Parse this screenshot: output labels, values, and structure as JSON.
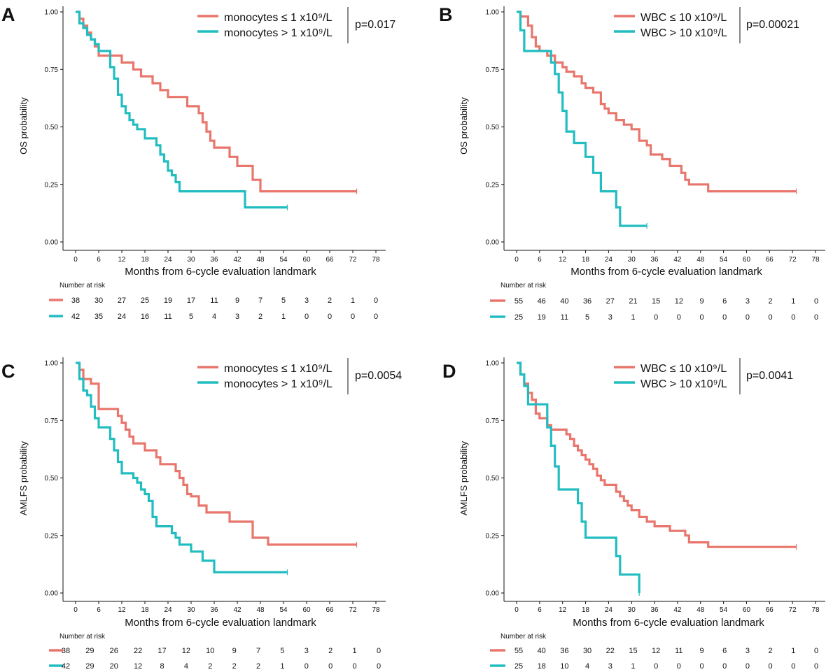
{
  "chart_data": [
    {
      "panel": "A",
      "type": "line",
      "title": "",
      "xlabel": "Months from 6-cycle evaluation landmark",
      "ylabel": "OS probability",
      "xlim": [
        0,
        78
      ],
      "ylim": [
        0,
        1
      ],
      "x_ticks": [
        "0",
        "6",
        "12",
        "18",
        "24",
        "30",
        "36",
        "42",
        "48",
        "54",
        "60",
        "66",
        "72",
        "78"
      ],
      "y_ticks": [
        "0.00",
        "0.25",
        "0.50",
        "0.75",
        "1.00"
      ],
      "p_value": "p=0.017",
      "risk_title": "Number at risk",
      "risk_times": [
        0,
        6,
        12,
        18,
        24,
        30,
        36,
        42,
        48,
        54,
        60,
        66,
        72,
        78
      ],
      "series": [
        {
          "name": "monocytes ≤ 1 x10⁹/L",
          "color": "#e8766c",
          "x": [
            0,
            1,
            2,
            3,
            4,
            5,
            6,
            9,
            12,
            14,
            15,
            16,
            17,
            18,
            20,
            21,
            22,
            23,
            24,
            26,
            28,
            29,
            30,
            32,
            33,
            34,
            35,
            36,
            38,
            40,
            42,
            45,
            46,
            48,
            50,
            54,
            58,
            60,
            66,
            72,
            73
          ],
          "y": [
            1,
            0.97,
            0.94,
            0.91,
            0.88,
            0.85,
            0.81,
            0.81,
            0.78,
            0.78,
            0.75,
            0.75,
            0.72,
            0.72,
            0.69,
            0.69,
            0.66,
            0.66,
            0.63,
            0.63,
            0.63,
            0.59,
            0.59,
            0.56,
            0.52,
            0.48,
            0.44,
            0.41,
            0.41,
            0.37,
            0.33,
            0.33,
            0.27,
            0.22,
            0.22,
            0.22,
            0.22,
            0.22,
            0.22,
            0.22,
            0.22
          ],
          "risk": [
            "38",
            "30",
            "27",
            "25",
            "19",
            "17",
            "11",
            "9",
            "7",
            "5",
            "3",
            "2",
            "1",
            "0"
          ]
        },
        {
          "name": "monocytes > 1 x10⁹/L",
          "color": "#22bdc1",
          "x": [
            0,
            1,
            2,
            3,
            4,
            5,
            6,
            7,
            8,
            9,
            10,
            11,
            12,
            13,
            14,
            15,
            16,
            17,
            18,
            20,
            21,
            22,
            23,
            24,
            25,
            26,
            27,
            28,
            30,
            33,
            44,
            48,
            55
          ],
          "y": [
            1,
            0.95,
            0.93,
            0.9,
            0.88,
            0.86,
            0.83,
            0.83,
            0.83,
            0.76,
            0.71,
            0.64,
            0.59,
            0.56,
            0.53,
            0.51,
            0.49,
            0.49,
            0.45,
            0.45,
            0.42,
            0.38,
            0.35,
            0.31,
            0.29,
            0.26,
            0.22,
            0.22,
            0.22,
            0.22,
            0.15,
            0.15,
            0.15
          ],
          "risk": [
            "42",
            "35",
            "24",
            "16",
            "11",
            "5",
            "4",
            "3",
            "2",
            "1",
            "0",
            "0",
            "0",
            "0"
          ]
        }
      ]
    },
    {
      "panel": "B",
      "type": "line",
      "title": "",
      "xlabel": "Months from 6-cycle evaluation landmark",
      "ylabel": "OS probability",
      "xlim": [
        0,
        78
      ],
      "ylim": [
        0,
        1
      ],
      "x_ticks": [
        "0",
        "6",
        "12",
        "18",
        "24",
        "30",
        "36",
        "42",
        "48",
        "54",
        "60",
        "66",
        "72",
        "78"
      ],
      "y_ticks": [
        "0.00",
        "0.25",
        "0.50",
        "0.75",
        "1.00"
      ],
      "p_value": "p=0.00021",
      "risk_title": "Number at risk",
      "risk_times": [
        0,
        6,
        12,
        18,
        24,
        30,
        36,
        42,
        48,
        54,
        60,
        66,
        72,
        78
      ],
      "series": [
        {
          "name": "WBC ≤ 10 x10⁹/L",
          "color": "#e8766c",
          "x": [
            0,
            1,
            3,
            4,
            5,
            6,
            8,
            10,
            12,
            13,
            15,
            17,
            18,
            20,
            22,
            23,
            24,
            26,
            28,
            30,
            32,
            34,
            35,
            37,
            38,
            40,
            42,
            43,
            44,
            45,
            47,
            50,
            54,
            60,
            66,
            72,
            73
          ],
          "y": [
            1,
            0.98,
            0.94,
            0.89,
            0.85,
            0.83,
            0.81,
            0.78,
            0.76,
            0.74,
            0.72,
            0.69,
            0.67,
            0.65,
            0.6,
            0.58,
            0.56,
            0.53,
            0.51,
            0.49,
            0.44,
            0.42,
            0.38,
            0.38,
            0.36,
            0.33,
            0.33,
            0.3,
            0.27,
            0.25,
            0.25,
            0.22,
            0.22,
            0.22,
            0.22,
            0.22,
            0.22
          ],
          "risk": [
            "55",
            "46",
            "40",
            "36",
            "27",
            "21",
            "15",
            "12",
            "9",
            "6",
            "3",
            "2",
            "1",
            "0"
          ]
        },
        {
          "name": "WBC > 10 x10⁹/L",
          "color": "#22bdc1",
          "x": [
            0,
            1,
            2,
            8,
            9,
            10,
            11,
            12,
            13,
            14,
            15,
            16,
            17,
            18,
            19,
            20,
            22,
            25,
            26,
            27,
            28,
            30,
            34
          ],
          "y": [
            1,
            0.92,
            0.83,
            0.83,
            0.78,
            0.73,
            0.65,
            0.57,
            0.48,
            0.48,
            0.43,
            0.43,
            0.43,
            0.37,
            0.37,
            0.3,
            0.22,
            0.22,
            0.15,
            0.07,
            0.07,
            0.07,
            0.07
          ],
          "risk": [
            "25",
            "19",
            "11",
            "5",
            "3",
            "1",
            "0",
            "0",
            "0",
            "0",
            "0",
            "0",
            "0",
            "0"
          ]
        }
      ]
    },
    {
      "panel": "C",
      "type": "line",
      "title": "",
      "xlabel": "Months from 6-cycle evaluation landmark",
      "ylabel": "AMLFS probability",
      "xlim": [
        0,
        78
      ],
      "ylim": [
        0,
        1
      ],
      "x_ticks": [
        "0",
        "6",
        "12",
        "18",
        "24",
        "30",
        "36",
        "42",
        "48",
        "54",
        "60",
        "66",
        "72",
        "78"
      ],
      "y_ticks": [
        "0.00",
        "0.25",
        "0.50",
        "0.75",
        "1.00"
      ],
      "p_value": "p=0.0054",
      "risk_title": "Number at risk",
      "risk_times": [
        0,
        6,
        12,
        18,
        24,
        30,
        36,
        42,
        48,
        54,
        60,
        66,
        72,
        78
      ],
      "series": [
        {
          "name": "monocytes ≤ 1 x10⁹/L",
          "color": "#e8766c",
          "x": [
            0,
            1,
            2,
            4,
            6,
            9,
            11,
            12,
            13,
            14,
            15,
            16,
            18,
            20,
            21,
            22,
            24,
            26,
            27,
            28,
            29,
            30,
            32,
            34,
            36,
            40,
            44,
            46,
            48,
            50,
            54,
            60,
            66,
            72,
            73
          ],
          "y": [
            1,
            0.97,
            0.93,
            0.91,
            0.8,
            0.8,
            0.77,
            0.74,
            0.71,
            0.68,
            0.65,
            0.65,
            0.62,
            0.62,
            0.59,
            0.56,
            0.56,
            0.53,
            0.5,
            0.47,
            0.43,
            0.42,
            0.38,
            0.35,
            0.35,
            0.31,
            0.31,
            0.24,
            0.24,
            0.21,
            0.21,
            0.21,
            0.21,
            0.21,
            0.21
          ],
          "risk": [
            "38",
            "29",
            "26",
            "22",
            "17",
            "12",
            "10",
            "9",
            "7",
            "5",
            "3",
            "2",
            "1",
            "0"
          ]
        },
        {
          "name": "monocytes > 1 x10⁹/L",
          "color": "#22bdc1",
          "x": [
            0,
            1,
            2,
            3,
            4,
            5,
            6,
            8,
            9,
            10,
            11,
            12,
            14,
            15,
            16,
            17,
            18,
            19,
            20,
            21,
            24,
            25,
            26,
            27,
            30,
            32,
            33,
            36,
            44,
            55
          ],
          "y": [
            1,
            0.93,
            0.88,
            0.86,
            0.81,
            0.76,
            0.72,
            0.72,
            0.67,
            0.62,
            0.57,
            0.52,
            0.52,
            0.5,
            0.48,
            0.45,
            0.43,
            0.4,
            0.33,
            0.29,
            0.29,
            0.26,
            0.24,
            0.21,
            0.18,
            0.18,
            0.14,
            0.09,
            0.09,
            0.09
          ],
          "risk": [
            "42",
            "29",
            "20",
            "12",
            "8",
            "4",
            "2",
            "2",
            "2",
            "1",
            "0",
            "0",
            "0",
            "0"
          ]
        }
      ]
    },
    {
      "panel": "D",
      "type": "line",
      "title": "",
      "xlabel": "Months from 6-cycle evaluation landmark",
      "ylabel": "AMLFS probability",
      "xlim": [
        0,
        78
      ],
      "ylim": [
        0,
        1
      ],
      "x_ticks": [
        "0",
        "6",
        "12",
        "18",
        "24",
        "30",
        "36",
        "42",
        "48",
        "54",
        "60",
        "66",
        "72",
        "78"
      ],
      "y_ticks": [
        "0.00",
        "0.25",
        "0.50",
        "0.75",
        "1.00"
      ],
      "p_value": "p=0.0041",
      "risk_title": "Number at risk",
      "risk_times": [
        0,
        6,
        12,
        18,
        24,
        30,
        36,
        42,
        48,
        54,
        60,
        66,
        72,
        78
      ],
      "series": [
        {
          "name": "WBC ≤ 10 x10⁹/L",
          "color": "#e8766c",
          "x": [
            0,
            1,
            2,
            3,
            4,
            5,
            6,
            8,
            9,
            13,
            14,
            15,
            16,
            17,
            18,
            19,
            20,
            21,
            22,
            23,
            24,
            26,
            27,
            28,
            29,
            30,
            32,
            34,
            36,
            40,
            44,
            45,
            48,
            50,
            54,
            60,
            66,
            72,
            73
          ],
          "y": [
            1,
            0.95,
            0.91,
            0.87,
            0.84,
            0.78,
            0.76,
            0.73,
            0.71,
            0.69,
            0.67,
            0.64,
            0.62,
            0.6,
            0.58,
            0.56,
            0.54,
            0.51,
            0.49,
            0.47,
            0.47,
            0.44,
            0.42,
            0.4,
            0.38,
            0.36,
            0.33,
            0.31,
            0.29,
            0.27,
            0.25,
            0.22,
            0.22,
            0.2,
            0.2,
            0.2,
            0.2,
            0.2,
            0.2
          ],
          "risk": [
            "55",
            "40",
            "36",
            "30",
            "22",
            "15",
            "12",
            "11",
            "9",
            "6",
            "3",
            "2",
            "1",
            "0"
          ]
        },
        {
          "name": "WBC > 10 x10⁹/L",
          "color": "#22bdc1",
          "x": [
            0,
            1,
            2,
            3,
            8,
            9,
            10,
            11,
            12,
            16,
            17,
            18,
            19,
            26,
            27,
            28,
            30,
            32
          ],
          "y": [
            1,
            0.95,
            0.9,
            0.82,
            0.72,
            0.64,
            0.55,
            0.45,
            0.45,
            0.39,
            0.31,
            0.24,
            0.24,
            0.16,
            0.08,
            0.08,
            0.08,
            0
          ],
          "risk": [
            "25",
            "18",
            "10",
            "4",
            "3",
            "1",
            "0",
            "0",
            "0",
            "0",
            "0",
            "0",
            "0",
            "0"
          ]
        }
      ]
    }
  ]
}
